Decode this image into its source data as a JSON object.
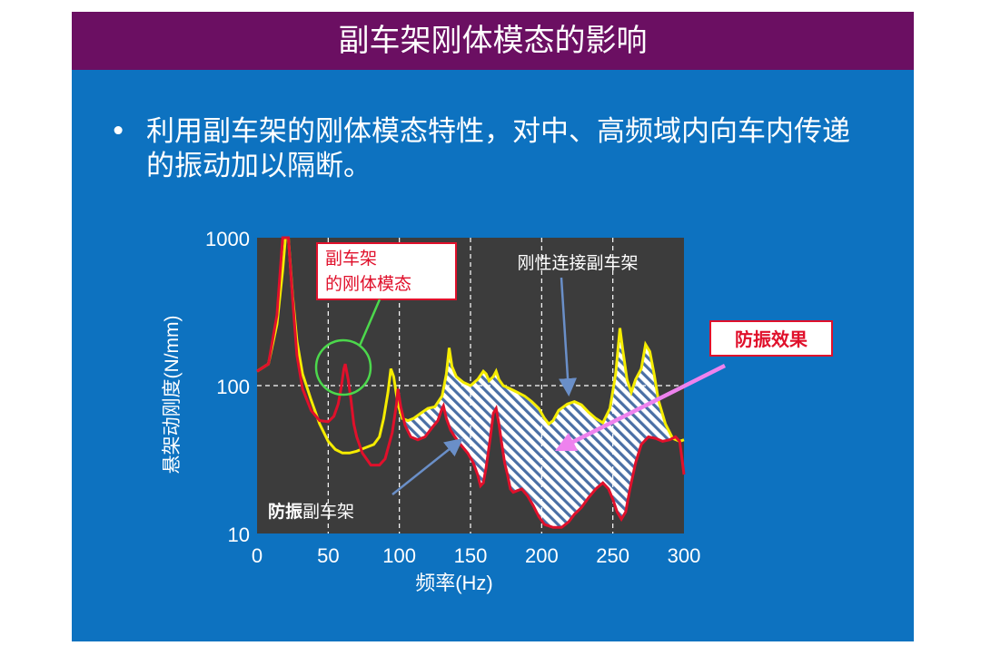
{
  "slide": {
    "title": "副车架刚体模态的影响",
    "bullet_symbol": "•",
    "bullet_text": "利用副车架的刚体模态特性，对中、高频域内向车内传递的振动加以隔断。",
    "colors": {
      "background": "#0d72c0",
      "title_bar": "#6b0f62",
      "plot_area": "#3c3c3c"
    }
  },
  "chart_data": {
    "type": "line",
    "xlabel": "频率(Hz)",
    "ylabel": "悬架动刚度(N/mm)",
    "x_scale": "linear",
    "y_scale": "log",
    "xlim": [
      0,
      300
    ],
    "ylim": [
      10,
      1000
    ],
    "x_ticks": [
      "0",
      "50",
      "100",
      "150",
      "200",
      "250",
      "300"
    ],
    "y_ticks": [
      "10",
      "100",
      "1000"
    ],
    "grid": "dashed white, x every 50 Hz, y at 100",
    "series": [
      {
        "name": "刚性连接副车架",
        "color": "#f5ec00",
        "points": [
          [
            0,
            125
          ],
          [
            8,
            140
          ],
          [
            14,
            260
          ],
          [
            18,
            600
          ],
          [
            20,
            1000
          ],
          [
            22,
            1000
          ],
          [
            25,
            400
          ],
          [
            28,
            200
          ],
          [
            32,
            120
          ],
          [
            38,
            80
          ],
          [
            44,
            55
          ],
          [
            50,
            42
          ],
          [
            55,
            37
          ],
          [
            60,
            35
          ],
          [
            65,
            35
          ],
          [
            70,
            36
          ],
          [
            76,
            38
          ],
          [
            82,
            40
          ],
          [
            86,
            45
          ],
          [
            89,
            60
          ],
          [
            92,
            90
          ],
          [
            94,
            130
          ],
          [
            96,
            115
          ],
          [
            99,
            75
          ],
          [
            102,
            60
          ],
          [
            106,
            58
          ],
          [
            110,
            60
          ],
          [
            115,
            65
          ],
          [
            120,
            70
          ],
          [
            125,
            72
          ],
          [
            130,
            85
          ],
          [
            133,
            120
          ],
          [
            135,
            180
          ],
          [
            137,
            135
          ],
          [
            140,
            115
          ],
          [
            145,
            105
          ],
          [
            150,
            100
          ],
          [
            155,
            110
          ],
          [
            159,
            125
          ],
          [
            161,
            120
          ],
          [
            163,
            108
          ],
          [
            166,
            115
          ],
          [
            168,
            125
          ],
          [
            170,
            110
          ],
          [
            173,
            100
          ],
          [
            178,
            95
          ],
          [
            183,
            90
          ],
          [
            188,
            85
          ],
          [
            193,
            78
          ],
          [
            198,
            70
          ],
          [
            202,
            60
          ],
          [
            205,
            55
          ],
          [
            208,
            58
          ],
          [
            212,
            68
          ],
          [
            218,
            75
          ],
          [
            223,
            78
          ],
          [
            228,
            74
          ],
          [
            233,
            66
          ],
          [
            238,
            60
          ],
          [
            243,
            56
          ],
          [
            248,
            70
          ],
          [
            252,
            120
          ],
          [
            255,
            245
          ],
          [
            257,
            175
          ],
          [
            260,
            110
          ],
          [
            263,
            90
          ],
          [
            266,
            110
          ],
          [
            270,
            130
          ],
          [
            273,
            190
          ],
          [
            276,
            170
          ],
          [
            279,
            120
          ],
          [
            282,
            80
          ],
          [
            287,
            55
          ],
          [
            292,
            44
          ],
          [
            297,
            42
          ],
          [
            301,
            43
          ]
        ]
      },
      {
        "name": "防振副车架",
        "color": "#e0102b",
        "points": [
          [
            0,
            125
          ],
          [
            8,
            140
          ],
          [
            14,
            300
          ],
          [
            18,
            1000
          ],
          [
            20,
            1000
          ],
          [
            22,
            1000
          ],
          [
            25,
            380
          ],
          [
            28,
            160
          ],
          [
            32,
            95
          ],
          [
            38,
            68
          ],
          [
            44,
            58
          ],
          [
            50,
            57
          ],
          [
            54,
            62
          ],
          [
            57,
            75
          ],
          [
            59,
            95
          ],
          [
            61,
            130
          ],
          [
            62,
            140
          ],
          [
            64,
            110
          ],
          [
            66,
            80
          ],
          [
            68,
            55
          ],
          [
            70,
            45
          ],
          [
            74,
            35
          ],
          [
            80,
            29
          ],
          [
            86,
            29
          ],
          [
            90,
            32
          ],
          [
            95,
            48
          ],
          [
            98,
            75
          ],
          [
            99,
            95
          ],
          [
            101,
            72
          ],
          [
            104,
            54
          ],
          [
            108,
            45
          ],
          [
            113,
            43
          ],
          [
            118,
            45
          ],
          [
            123,
            52
          ],
          [
            127,
            58
          ],
          [
            130,
            70
          ],
          [
            131,
            73
          ],
          [
            133,
            60
          ],
          [
            136,
            50
          ],
          [
            139,
            45
          ],
          [
            143,
            40
          ],
          [
            148,
            35
          ],
          [
            152,
            30
          ],
          [
            155,
            25
          ],
          [
            157,
            21
          ],
          [
            159,
            22
          ],
          [
            161,
            28
          ],
          [
            164,
            45
          ],
          [
            166,
            65
          ],
          [
            168,
            70
          ],
          [
            170,
            55
          ],
          [
            172,
            40
          ],
          [
            174,
            30
          ],
          [
            176,
            25
          ],
          [
            178,
            20
          ],
          [
            180,
            19
          ],
          [
            183,
            19.5
          ],
          [
            186,
            20
          ],
          [
            190,
            18
          ],
          [
            194,
            15.5
          ],
          [
            198,
            13
          ],
          [
            202,
            11.5
          ],
          [
            208,
            11
          ],
          [
            214,
            11
          ],
          [
            219,
            12
          ],
          [
            223,
            13.5
          ],
          [
            228,
            15
          ],
          [
            233,
            17.5
          ],
          [
            238,
            20
          ],
          [
            243,
            22
          ],
          [
            247,
            20
          ],
          [
            250,
            17
          ],
          [
            253,
            14
          ],
          [
            256,
            12.5
          ],
          [
            259,
            14
          ],
          [
            262,
            20
          ],
          [
            266,
            30
          ],
          [
            270,
            40
          ],
          [
            275,
            45
          ],
          [
            280,
            44
          ],
          [
            285,
            42
          ],
          [
            290,
            43
          ],
          [
            294,
            45
          ],
          [
            297,
            42
          ],
          [
            299,
            30
          ],
          [
            300,
            25
          ]
        ]
      }
    ],
    "annotations": {
      "rigid_mode_label_line1": "副车架",
      "rigid_mode_label_line2": "的刚体模态",
      "rigid_series_label": "刚性连接副车架",
      "isolated_label_bold": "防振",
      "isolated_label_rest": "副车架",
      "effect_label": "防振效果"
    }
  }
}
